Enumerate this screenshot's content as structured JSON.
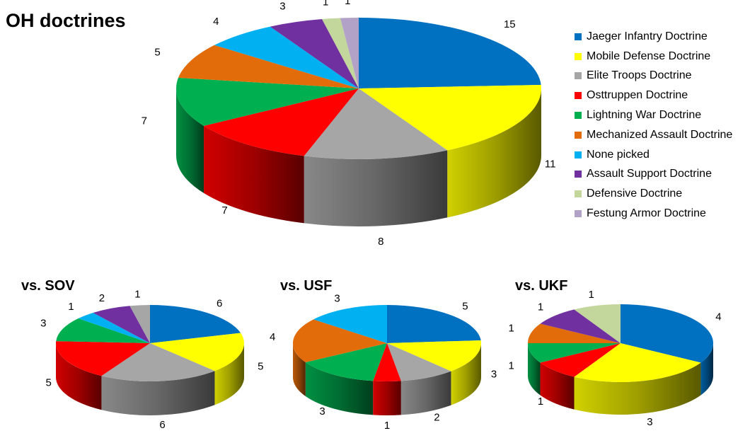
{
  "main_title": "OH doctrines",
  "colors": {
    "Jaeger Infantry Doctrine": "#0070c0",
    "Mobile Defense Doctrine": "#ffff00",
    "Elite Troops Doctrine": "#a6a6a6",
    "Osttruppen Doctrine": "#ff0000",
    "Lightning War Doctrine": "#00b050",
    "Mechanized Assault Doctrine": "#e36c0a",
    "None picked": "#00b0f0",
    "Assault Support Doctrine": "#7030a0",
    "Defensive Doctrine": "#c3d69b",
    "Festung Armor Doctrine": "#b3a2c7"
  },
  "legend": [
    "Jaeger Infantry Doctrine",
    "Mobile Defense Doctrine",
    "Elite Troops Doctrine",
    "Osttruppen Doctrine",
    "Lightning War Doctrine",
    "Mechanized Assault Doctrine",
    "None picked",
    "Assault Support Doctrine",
    "Defensive Doctrine",
    "Festung Armor Doctrine"
  ],
  "chart_data": [
    {
      "type": "pie",
      "title": "OH doctrines",
      "legend_position": "right",
      "categories": [
        "Jaeger Infantry Doctrine",
        "Mobile Defense Doctrine",
        "Elite Troops Doctrine",
        "Osttruppen Doctrine",
        "Lightning War Doctrine",
        "Mechanized Assault Doctrine",
        "None picked",
        "Assault Support Doctrine",
        "Defensive Doctrine",
        "Festung Armor Doctrine"
      ],
      "values": [
        15,
        11,
        8,
        7,
        7,
        5,
        4,
        3,
        1,
        1
      ]
    },
    {
      "type": "pie",
      "title": "vs. SOV",
      "categories": [
        "Jaeger Infantry Doctrine",
        "Mobile Defense Doctrine",
        "Elite Troops Doctrine",
        "Osttruppen Doctrine",
        "Lightning War Doctrine",
        "None picked",
        "Assault Support Doctrine",
        "Elite Troops Doctrine"
      ],
      "values": [
        6,
        5,
        6,
        5,
        3,
        1,
        2,
        1
      ]
    },
    {
      "type": "pie",
      "title": "vs. USF",
      "categories": [
        "Jaeger Infantry Doctrine",
        "Mobile Defense Doctrine",
        "Elite Troops Doctrine",
        "Osttruppen Doctrine",
        "Lightning War Doctrine",
        "Mechanized Assault Doctrine",
        "None picked"
      ],
      "values": [
        5,
        3,
        2,
        1,
        3,
        4,
        3
      ]
    },
    {
      "type": "pie",
      "title": "vs. UKF",
      "categories": [
        "Jaeger Infantry Doctrine",
        "Mobile Defense Doctrine",
        "Osttruppen Doctrine",
        "Lightning War Doctrine",
        "Mechanized Assault Doctrine",
        "Assault Support Doctrine",
        "Defensive Doctrine"
      ],
      "values": [
        4,
        3,
        1,
        1,
        1,
        1,
        1
      ]
    }
  ]
}
